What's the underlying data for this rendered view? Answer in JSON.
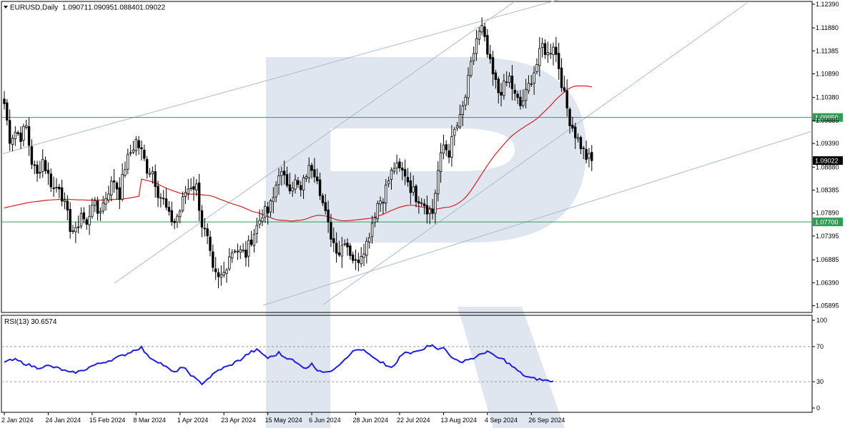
{
  "header": {
    "symbol": "EURUSD,Daily",
    "open": "1.09071",
    "high": "1.09095",
    "low": "1.08840",
    "close": "1.09022"
  },
  "rsi_header": "RSI(13) 30.6574",
  "colors": {
    "candle": "#000000",
    "ma": "#d42222",
    "level": "#2e9e55",
    "channel": "#a9bccd",
    "rsi": "#1f1fdc",
    "price_tag": "#000000",
    "level_tag": "#2e9e55",
    "watermark": "#dfe6ef"
  },
  "watermark_icon": "letter-r-logo",
  "chart_data": [
    {
      "type": "candlestick",
      "title": "EURUSD,Daily",
      "ylim": [
        1.0575,
        1.1245
      ],
      "y_ticks": [
        "1.12390",
        "1.11880",
        "1.11385",
        "1.10890",
        "1.10380",
        "1.09885",
        "1.09390",
        "1.08880",
        "1.08385",
        "1.07890",
        "1.07395",
        "1.06885",
        "1.06390",
        "1.05895"
      ],
      "x_ticks": [
        "2 Jan 2024",
        "24 Jan 2024",
        "15 Feb 2024",
        "8 Mar 2024",
        "1 Apr 2024",
        "23 Apr 2024",
        "15 May 2024",
        "6 Jun 2024",
        "28 Jun 2024",
        "22 Jul 2024",
        "13 Aug 2024",
        "4 Sep 2024",
        "26 Sep 2024"
      ],
      "x_tick_index": [
        0,
        16,
        32,
        48,
        64,
        80,
        96,
        112,
        128,
        144,
        160,
        176,
        192
      ],
      "current_price": "1.09022",
      "levels": [
        {
          "label": "1.09950",
          "value": 1.0995
        },
        {
          "label": "1.07700",
          "value": 1.077
        }
      ],
      "close_anchors": [
        [
          0,
          1.1025
        ],
        [
          2,
          1.095
        ],
        [
          4,
          1.0965
        ],
        [
          6,
          1.0955
        ],
        [
          8,
          1.0975
        ],
        [
          10,
          1.09
        ],
        [
          12,
          1.087
        ],
        [
          14,
          1.0905
        ],
        [
          16,
          1.087
        ],
        [
          18,
          1.084
        ],
        [
          20,
          1.085
        ],
        [
          22,
          1.0805
        ],
        [
          24,
          1.076
        ],
        [
          26,
          1.0745
        ],
        [
          28,
          1.079
        ],
        [
          30,
          1.076
        ],
        [
          32,
          1.0815
        ],
        [
          34,
          1.079
        ],
        [
          36,
          1.081
        ],
        [
          38,
          1.084
        ],
        [
          40,
          1.086
        ],
        [
          42,
          1.083
        ],
        [
          44,
          1.089
        ],
        [
          46,
          1.092
        ],
        [
          48,
          1.0945
        ],
        [
          50,
          1.092
        ],
        [
          52,
          1.0885
        ],
        [
          54,
          1.088
        ],
        [
          56,
          1.0835
        ],
        [
          58,
          1.0815
        ],
        [
          60,
          1.078
        ],
        [
          62,
          1.077
        ],
        [
          64,
          1.0795
        ],
        [
          66,
          1.0835
        ],
        [
          68,
          1.085
        ],
        [
          70,
          1.0845
        ],
        [
          72,
          1.0765
        ],
        [
          74,
          1.073
        ],
        [
          76,
          1.066
        ],
        [
          78,
          1.0645
        ],
        [
          80,
          1.066
        ],
        [
          82,
          1.07
        ],
        [
          84,
          1.0715
        ],
        [
          86,
          1.0705
        ],
        [
          88,
          1.07
        ],
        [
          90,
          1.0735
        ],
        [
          92,
          1.076
        ],
        [
          94,
          1.079
        ],
        [
          96,
          1.079
        ],
        [
          98,
          1.082
        ],
        [
          100,
          1.088
        ],
        [
          102,
          1.086
        ],
        [
          104,
          1.085
        ],
        [
          106,
          1.0855
        ],
        [
          108,
          1.0835
        ],
        [
          110,
          1.0875
        ],
        [
          112,
          1.089
        ],
        [
          114,
          1.087
        ],
        [
          116,
          1.081
        ],
        [
          118,
          1.076
        ],
        [
          120,
          1.0725
        ],
        [
          122,
          1.0705
        ],
        [
          124,
          1.0735
        ],
        [
          126,
          1.0705
        ],
        [
          128,
          1.068
        ],
        [
          130,
          1.0705
        ],
        [
          132,
          1.0725
        ],
        [
          134,
          1.077
        ],
        [
          136,
          1.081
        ],
        [
          138,
          1.0825
        ],
        [
          140,
          1.086
        ],
        [
          142,
          1.089
        ],
        [
          144,
          1.088
        ],
        [
          146,
          1.0875
        ],
        [
          148,
          1.0845
        ],
        [
          150,
          1.0825
        ],
        [
          152,
          1.082
        ],
        [
          154,
          1.08
        ],
        [
          156,
          1.079
        ],
        [
          158,
          1.088
        ],
        [
          160,
          1.0935
        ],
        [
          162,
          1.092
        ],
        [
          164,
          1.0965
        ],
        [
          166,
          1.099
        ],
        [
          168,
          1.104
        ],
        [
          170,
          1.1105
        ],
        [
          172,
          1.1165
        ],
        [
          174,
          1.1185
        ],
        [
          176,
          1.113
        ],
        [
          178,
          1.1085
        ],
        [
          180,
          1.105
        ],
        [
          182,
          1.106
        ],
        [
          184,
          1.108
        ],
        [
          186,
          1.104
        ],
        [
          188,
          1.102
        ],
        [
          190,
          1.1045
        ],
        [
          192,
          1.108
        ],
        [
          194,
          1.111
        ],
        [
          196,
          1.115
        ],
        [
          198,
          1.113
        ],
        [
          200,
          1.1155
        ],
        [
          202,
          1.1105
        ],
        [
          204,
          1.104
        ],
        [
          206,
          1.099
        ],
        [
          208,
          1.096
        ],
        [
          210,
          1.0935
        ],
        [
          212,
          1.091
        ],
        [
          214,
          1.0902
        ]
      ]
    },
    {
      "type": "line",
      "title": "RSI(13) 30.6574",
      "ylim": [
        0,
        100
      ],
      "y_ticks": [
        100,
        70,
        30,
        0
      ],
      "levels": [
        70,
        30
      ],
      "last_value": 30.6574,
      "rsi_anchors": [
        [
          0,
          53
        ],
        [
          4,
          55
        ],
        [
          8,
          50
        ],
        [
          12,
          46
        ],
        [
          16,
          48
        ],
        [
          20,
          45
        ],
        [
          24,
          40
        ],
        [
          28,
          42
        ],
        [
          32,
          48
        ],
        [
          36,
          52
        ],
        [
          40,
          56
        ],
        [
          44,
          61
        ],
        [
          48,
          67
        ],
        [
          50,
          69
        ],
        [
          52,
          60
        ],
        [
          54,
          56
        ],
        [
          56,
          53
        ],
        [
          58,
          49
        ],
        [
          60,
          44
        ],
        [
          62,
          40
        ],
        [
          64,
          46
        ],
        [
          66,
          44
        ],
        [
          68,
          38
        ],
        [
          70,
          32
        ],
        [
          72,
          28
        ],
        [
          74,
          33
        ],
        [
          76,
          38
        ],
        [
          78,
          43
        ],
        [
          80,
          46
        ],
        [
          82,
          48
        ],
        [
          84,
          52
        ],
        [
          86,
          55
        ],
        [
          88,
          60
        ],
        [
          90,
          64
        ],
        [
          92,
          66
        ],
        [
          94,
          62
        ],
        [
          96,
          57
        ],
        [
          98,
          59
        ],
        [
          100,
          63
        ],
        [
          102,
          58
        ],
        [
          104,
          57
        ],
        [
          106,
          52
        ],
        [
          108,
          48
        ],
        [
          110,
          46
        ],
        [
          112,
          50
        ],
        [
          114,
          44
        ],
        [
          116,
          42
        ],
        [
          118,
          40
        ],
        [
          120,
          45
        ],
        [
          122,
          50
        ],
        [
          124,
          56
        ],
        [
          126,
          62
        ],
        [
          128,
          66
        ],
        [
          130,
          67
        ],
        [
          132,
          63
        ],
        [
          134,
          58
        ],
        [
          136,
          53
        ],
        [
          138,
          52
        ],
        [
          140,
          46
        ],
        [
          142,
          47
        ],
        [
          144,
          58
        ],
        [
          146,
          63
        ],
        [
          148,
          62
        ],
        [
          150,
          66
        ],
        [
          152,
          67
        ],
        [
          154,
          70
        ],
        [
          156,
          73
        ],
        [
          158,
          66
        ],
        [
          160,
          69
        ],
        [
          162,
          62
        ],
        [
          164,
          55
        ],
        [
          166,
          52
        ],
        [
          168,
          55
        ],
        [
          170,
          56
        ],
        [
          172,
          58
        ],
        [
          174,
          62
        ],
        [
          176,
          65
        ],
        [
          178,
          60
        ],
        [
          180,
          57
        ],
        [
          182,
          55
        ],
        [
          184,
          50
        ],
        [
          186,
          45
        ],
        [
          188,
          40
        ],
        [
          190,
          36
        ],
        [
          192,
          34
        ],
        [
          194,
          33
        ],
        [
          196,
          32
        ],
        [
          198,
          31
        ],
        [
          200,
          30.66
        ]
      ]
    }
  ]
}
